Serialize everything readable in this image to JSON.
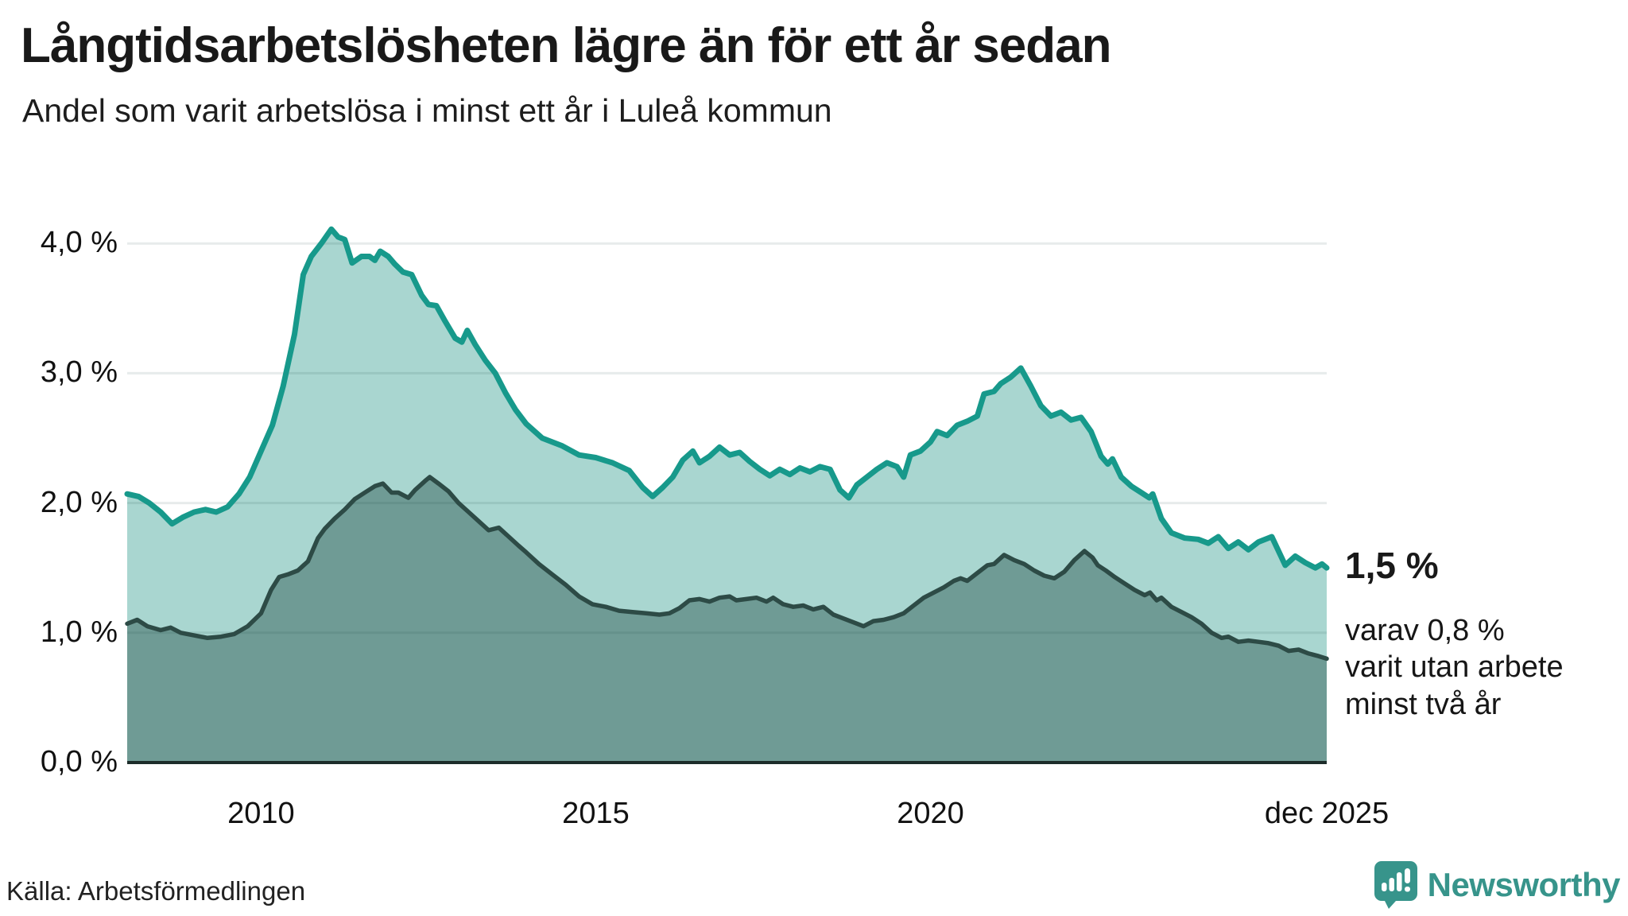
{
  "header": {
    "title": "Långtidsarbetslösheten lägre än för ett år sedan",
    "subtitle": "Andel som varit arbetslösa i minst ett år i Luleå kommun"
  },
  "colors": {
    "stroke_1yr": "#17998b",
    "fill_1yr": "#a9d6d0",
    "stroke_2yr": "#2d4b46",
    "fill_2yr": "#6f9b95",
    "gridline": "rgba(20,60,55,0.10)",
    "baseline": "#1d2c2a",
    "brand_teal": "#37948b"
  },
  "chart_data": {
    "type": "area",
    "title": "Långtidsarbetslösheten lägre än för ett år sedan",
    "subtitle": "Andel som varit arbetslösa i minst ett år i Luleå kommun",
    "unit": "%",
    "grid": "horizontal only",
    "legend_position": "none (annotated at line ends)",
    "x_axis": {
      "range": [
        2008.0,
        2025.92
      ],
      "ticks": [
        {
          "label": "2010",
          "t": 2010.0
        },
        {
          "label": "2015",
          "t": 2015.0
        },
        {
          "label": "2020",
          "t": 2020.0
        },
        {
          "label": "dec 2025",
          "t": 2025.92
        }
      ]
    },
    "y_axis": {
      "range": [
        0,
        4.3
      ],
      "gridlines": [
        1,
        2,
        3,
        4
      ],
      "ticks": [
        {
          "label": "4,0 %",
          "v": 4
        },
        {
          "label": "3,0 %",
          "v": 3
        },
        {
          "label": "2,0 %",
          "v": 2
        },
        {
          "label": "1,0 %",
          "v": 1
        },
        {
          "label": "0,0 %",
          "v": 0
        }
      ]
    },
    "annotations": {
      "primary_value": "1,5 %",
      "secondary_line1": "varav 0,8 %",
      "secondary_line2": "varit utan arbete",
      "secondary_line3": "minst två år"
    },
    "series": [
      {
        "name": "Andel som varit arbetslösa minst ett år",
        "end_value": 1.5,
        "points": [
          [
            2008.0,
            2.07
          ],
          [
            2008.17,
            2.05
          ],
          [
            2008.33,
            2.0
          ],
          [
            2008.5,
            1.93
          ],
          [
            2008.67,
            1.84
          ],
          [
            2008.83,
            1.89
          ],
          [
            2009.0,
            1.93
          ],
          [
            2009.17,
            1.95
          ],
          [
            2009.33,
            1.93
          ],
          [
            2009.5,
            1.97
          ],
          [
            2009.67,
            2.07
          ],
          [
            2009.83,
            2.2
          ],
          [
            2010.0,
            2.4
          ],
          [
            2010.17,
            2.6
          ],
          [
            2010.33,
            2.9
          ],
          [
            2010.5,
            3.3
          ],
          [
            2010.63,
            3.76
          ],
          [
            2010.75,
            3.9
          ],
          [
            2010.9,
            4.0
          ],
          [
            2011.05,
            4.11
          ],
          [
            2011.15,
            4.05
          ],
          [
            2011.25,
            4.03
          ],
          [
            2011.36,
            3.85
          ],
          [
            2011.5,
            3.9
          ],
          [
            2011.62,
            3.9
          ],
          [
            2011.7,
            3.87
          ],
          [
            2011.78,
            3.94
          ],
          [
            2011.9,
            3.9
          ],
          [
            2012.0,
            3.84
          ],
          [
            2012.12,
            3.78
          ],
          [
            2012.25,
            3.76
          ],
          [
            2012.4,
            3.6
          ],
          [
            2012.5,
            3.53
          ],
          [
            2012.62,
            3.52
          ],
          [
            2012.75,
            3.4
          ],
          [
            2012.9,
            3.27
          ],
          [
            2013.0,
            3.24
          ],
          [
            2013.08,
            3.33
          ],
          [
            2013.2,
            3.22
          ],
          [
            2013.35,
            3.1
          ],
          [
            2013.5,
            3.0
          ],
          [
            2013.65,
            2.85
          ],
          [
            2013.8,
            2.72
          ],
          [
            2013.96,
            2.61
          ],
          [
            2014.2,
            2.5
          ],
          [
            2014.5,
            2.44
          ],
          [
            2014.75,
            2.37
          ],
          [
            2015.0,
            2.35
          ],
          [
            2015.25,
            2.31
          ],
          [
            2015.5,
            2.25
          ],
          [
            2015.7,
            2.12
          ],
          [
            2015.85,
            2.05
          ],
          [
            2016.0,
            2.12
          ],
          [
            2016.15,
            2.2
          ],
          [
            2016.3,
            2.33
          ],
          [
            2016.45,
            2.4
          ],
          [
            2016.55,
            2.31
          ],
          [
            2016.7,
            2.36
          ],
          [
            2016.85,
            2.43
          ],
          [
            2017.0,
            2.37
          ],
          [
            2017.15,
            2.39
          ],
          [
            2017.3,
            2.32
          ],
          [
            2017.45,
            2.26
          ],
          [
            2017.6,
            2.21
          ],
          [
            2017.75,
            2.26
          ],
          [
            2017.9,
            2.22
          ],
          [
            2018.05,
            2.27
          ],
          [
            2018.2,
            2.24
          ],
          [
            2018.35,
            2.28
          ],
          [
            2018.5,
            2.26
          ],
          [
            2018.65,
            2.1
          ],
          [
            2018.78,
            2.04
          ],
          [
            2018.9,
            2.14
          ],
          [
            2019.05,
            2.2
          ],
          [
            2019.2,
            2.26
          ],
          [
            2019.35,
            2.31
          ],
          [
            2019.5,
            2.28
          ],
          [
            2019.6,
            2.2
          ],
          [
            2019.7,
            2.37
          ],
          [
            2019.85,
            2.4
          ],
          [
            2020.0,
            2.47
          ],
          [
            2020.1,
            2.55
          ],
          [
            2020.25,
            2.52
          ],
          [
            2020.4,
            2.6
          ],
          [
            2020.55,
            2.63
          ],
          [
            2020.7,
            2.67
          ],
          [
            2020.8,
            2.84
          ],
          [
            2020.95,
            2.86
          ],
          [
            2021.05,
            2.92
          ],
          [
            2021.2,
            2.97
          ],
          [
            2021.35,
            3.04
          ],
          [
            2021.5,
            2.9
          ],
          [
            2021.65,
            2.75
          ],
          [
            2021.8,
            2.67
          ],
          [
            2021.95,
            2.7
          ],
          [
            2022.1,
            2.64
          ],
          [
            2022.25,
            2.66
          ],
          [
            2022.4,
            2.55
          ],
          [
            2022.55,
            2.36
          ],
          [
            2022.65,
            2.3
          ],
          [
            2022.72,
            2.34
          ],
          [
            2022.85,
            2.2
          ],
          [
            2023.0,
            2.13
          ],
          [
            2023.15,
            2.08
          ],
          [
            2023.27,
            2.04
          ],
          [
            2023.32,
            2.07
          ],
          [
            2023.45,
            1.88
          ],
          [
            2023.6,
            1.77
          ],
          [
            2023.8,
            1.73
          ],
          [
            2024.0,
            1.72
          ],
          [
            2024.15,
            1.69
          ],
          [
            2024.3,
            1.74
          ],
          [
            2024.45,
            1.65
          ],
          [
            2024.6,
            1.7
          ],
          [
            2024.75,
            1.64
          ],
          [
            2024.9,
            1.7
          ],
          [
            2025.1,
            1.74
          ],
          [
            2025.3,
            1.52
          ],
          [
            2025.45,
            1.59
          ],
          [
            2025.6,
            1.54
          ],
          [
            2025.75,
            1.5
          ],
          [
            2025.85,
            1.53
          ],
          [
            2025.92,
            1.5
          ]
        ]
      },
      {
        "name": "Andel som varit utan arbete minst två år",
        "end_value": 0.8,
        "points": [
          [
            2008.0,
            1.07
          ],
          [
            2008.15,
            1.1
          ],
          [
            2008.3,
            1.05
          ],
          [
            2008.5,
            1.02
          ],
          [
            2008.65,
            1.04
          ],
          [
            2008.8,
            1.0
          ],
          [
            2009.0,
            0.98
          ],
          [
            2009.2,
            0.96
          ],
          [
            2009.4,
            0.97
          ],
          [
            2009.6,
            0.99
          ],
          [
            2009.8,
            1.05
          ],
          [
            2010.0,
            1.15
          ],
          [
            2010.15,
            1.33
          ],
          [
            2010.27,
            1.43
          ],
          [
            2010.4,
            1.45
          ],
          [
            2010.55,
            1.48
          ],
          [
            2010.7,
            1.55
          ],
          [
            2010.85,
            1.73
          ],
          [
            2010.95,
            1.8
          ],
          [
            2011.1,
            1.88
          ],
          [
            2011.25,
            1.95
          ],
          [
            2011.4,
            2.03
          ],
          [
            2011.55,
            2.08
          ],
          [
            2011.7,
            2.13
          ],
          [
            2011.82,
            2.15
          ],
          [
            2011.95,
            2.08
          ],
          [
            2012.05,
            2.08
          ],
          [
            2012.2,
            2.04
          ],
          [
            2012.3,
            2.1
          ],
          [
            2012.45,
            2.17
          ],
          [
            2012.52,
            2.2
          ],
          [
            2012.65,
            2.15
          ],
          [
            2012.8,
            2.09
          ],
          [
            2012.95,
            2.0
          ],
          [
            2013.1,
            1.93
          ],
          [
            2013.25,
            1.86
          ],
          [
            2013.4,
            1.79
          ],
          [
            2013.55,
            1.81
          ],
          [
            2013.7,
            1.74
          ],
          [
            2013.85,
            1.67
          ],
          [
            2013.96,
            1.62
          ],
          [
            2014.15,
            1.53
          ],
          [
            2014.35,
            1.45
          ],
          [
            2014.55,
            1.37
          ],
          [
            2014.75,
            1.28
          ],
          [
            2014.95,
            1.22
          ],
          [
            2015.15,
            1.2
          ],
          [
            2015.35,
            1.17
          ],
          [
            2015.55,
            1.16
          ],
          [
            2015.75,
            1.15
          ],
          [
            2015.95,
            1.14
          ],
          [
            2016.1,
            1.15
          ],
          [
            2016.25,
            1.19
          ],
          [
            2016.4,
            1.25
          ],
          [
            2016.55,
            1.26
          ],
          [
            2016.7,
            1.24
          ],
          [
            2016.85,
            1.27
          ],
          [
            2017.0,
            1.28
          ],
          [
            2017.1,
            1.25
          ],
          [
            2017.25,
            1.26
          ],
          [
            2017.4,
            1.27
          ],
          [
            2017.55,
            1.24
          ],
          [
            2017.65,
            1.27
          ],
          [
            2017.8,
            1.22
          ],
          [
            2017.95,
            1.2
          ],
          [
            2018.1,
            1.21
          ],
          [
            2018.25,
            1.18
          ],
          [
            2018.4,
            1.2
          ],
          [
            2018.55,
            1.14
          ],
          [
            2018.7,
            1.11
          ],
          [
            2018.85,
            1.08
          ],
          [
            2019.0,
            1.05
          ],
          [
            2019.15,
            1.09
          ],
          [
            2019.3,
            1.1
          ],
          [
            2019.45,
            1.12
          ],
          [
            2019.6,
            1.15
          ],
          [
            2019.75,
            1.21
          ],
          [
            2019.9,
            1.27
          ],
          [
            2020.05,
            1.31
          ],
          [
            2020.2,
            1.35
          ],
          [
            2020.35,
            1.4
          ],
          [
            2020.45,
            1.42
          ],
          [
            2020.55,
            1.4
          ],
          [
            2020.7,
            1.46
          ],
          [
            2020.85,
            1.52
          ],
          [
            2020.95,
            1.53
          ],
          [
            2021.1,
            1.6
          ],
          [
            2021.25,
            1.56
          ],
          [
            2021.4,
            1.53
          ],
          [
            2021.55,
            1.48
          ],
          [
            2021.7,
            1.44
          ],
          [
            2021.85,
            1.42
          ],
          [
            2022.0,
            1.47
          ],
          [
            2022.15,
            1.56
          ],
          [
            2022.3,
            1.63
          ],
          [
            2022.42,
            1.58
          ],
          [
            2022.5,
            1.52
          ],
          [
            2022.62,
            1.48
          ],
          [
            2022.75,
            1.43
          ],
          [
            2022.9,
            1.38
          ],
          [
            2023.05,
            1.33
          ],
          [
            2023.2,
            1.29
          ],
          [
            2023.28,
            1.31
          ],
          [
            2023.38,
            1.25
          ],
          [
            2023.45,
            1.27
          ],
          [
            2023.6,
            1.2
          ],
          [
            2023.75,
            1.16
          ],
          [
            2023.9,
            1.12
          ],
          [
            2024.05,
            1.07
          ],
          [
            2024.2,
            1.0
          ],
          [
            2024.35,
            0.96
          ],
          [
            2024.45,
            0.97
          ],
          [
            2024.6,
            0.93
          ],
          [
            2024.75,
            0.94
          ],
          [
            2024.9,
            0.93
          ],
          [
            2025.05,
            0.92
          ],
          [
            2025.2,
            0.9
          ],
          [
            2025.35,
            0.86
          ],
          [
            2025.5,
            0.87
          ],
          [
            2025.65,
            0.84
          ],
          [
            2025.8,
            0.82
          ],
          [
            2025.92,
            0.8
          ]
        ]
      }
    ]
  },
  "footer": {
    "source": "Källa: Arbetsförmedlingen",
    "brand": "Newsworthy"
  }
}
